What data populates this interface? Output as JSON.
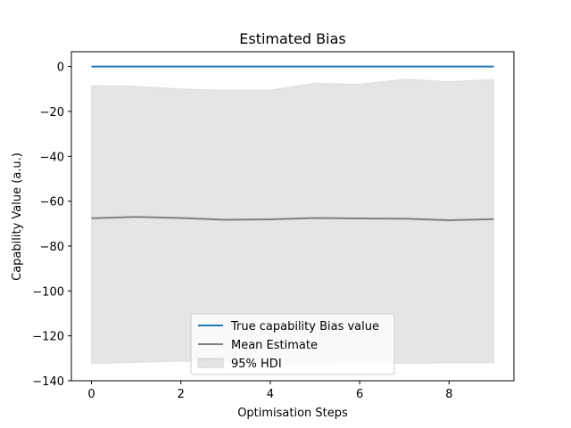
{
  "chart_data": {
    "type": "line",
    "title": "Estimated Bias",
    "xlabel": "Optimisation Steps",
    "ylabel": "Capability Value (a.u.)",
    "xlim": [
      -0.45,
      9.45
    ],
    "ylim": [
      -140,
      6.6
    ],
    "xticks": [
      0,
      2,
      4,
      6,
      8
    ],
    "yticks": [
      0,
      -20,
      -40,
      -60,
      -80,
      -100,
      -120,
      -140
    ],
    "x": [
      0,
      1,
      2,
      3,
      4,
      5,
      6,
      7,
      8,
      9
    ],
    "true_value": {
      "name": "True capability Bias value",
      "values": [
        0,
        0,
        0,
        0,
        0,
        0,
        0,
        0,
        0,
        0
      ],
      "color": "#1f77b4"
    },
    "mean": {
      "name": "Mean Estimate",
      "values": [
        -67.6,
        -67.0,
        -67.5,
        -68.3,
        -68.1,
        -67.5,
        -67.7,
        -67.8,
        -68.5,
        -68.0
      ],
      "color": "#808080"
    },
    "hdi": {
      "name": "95% HDI",
      "lower": [
        -132.4,
        -131.8,
        -131.3,
        -131.9,
        -132.5,
        -132.6,
        -132.2,
        -132.3,
        -132.1,
        -132.0
      ],
      "upper": [
        -8.5,
        -8.8,
        -10.0,
        -10.6,
        -10.5,
        -7.4,
        -7.9,
        -5.6,
        -6.7,
        -5.8
      ],
      "color": "#d3d3d3"
    },
    "legend_position": "lower center",
    "grid": false
  }
}
